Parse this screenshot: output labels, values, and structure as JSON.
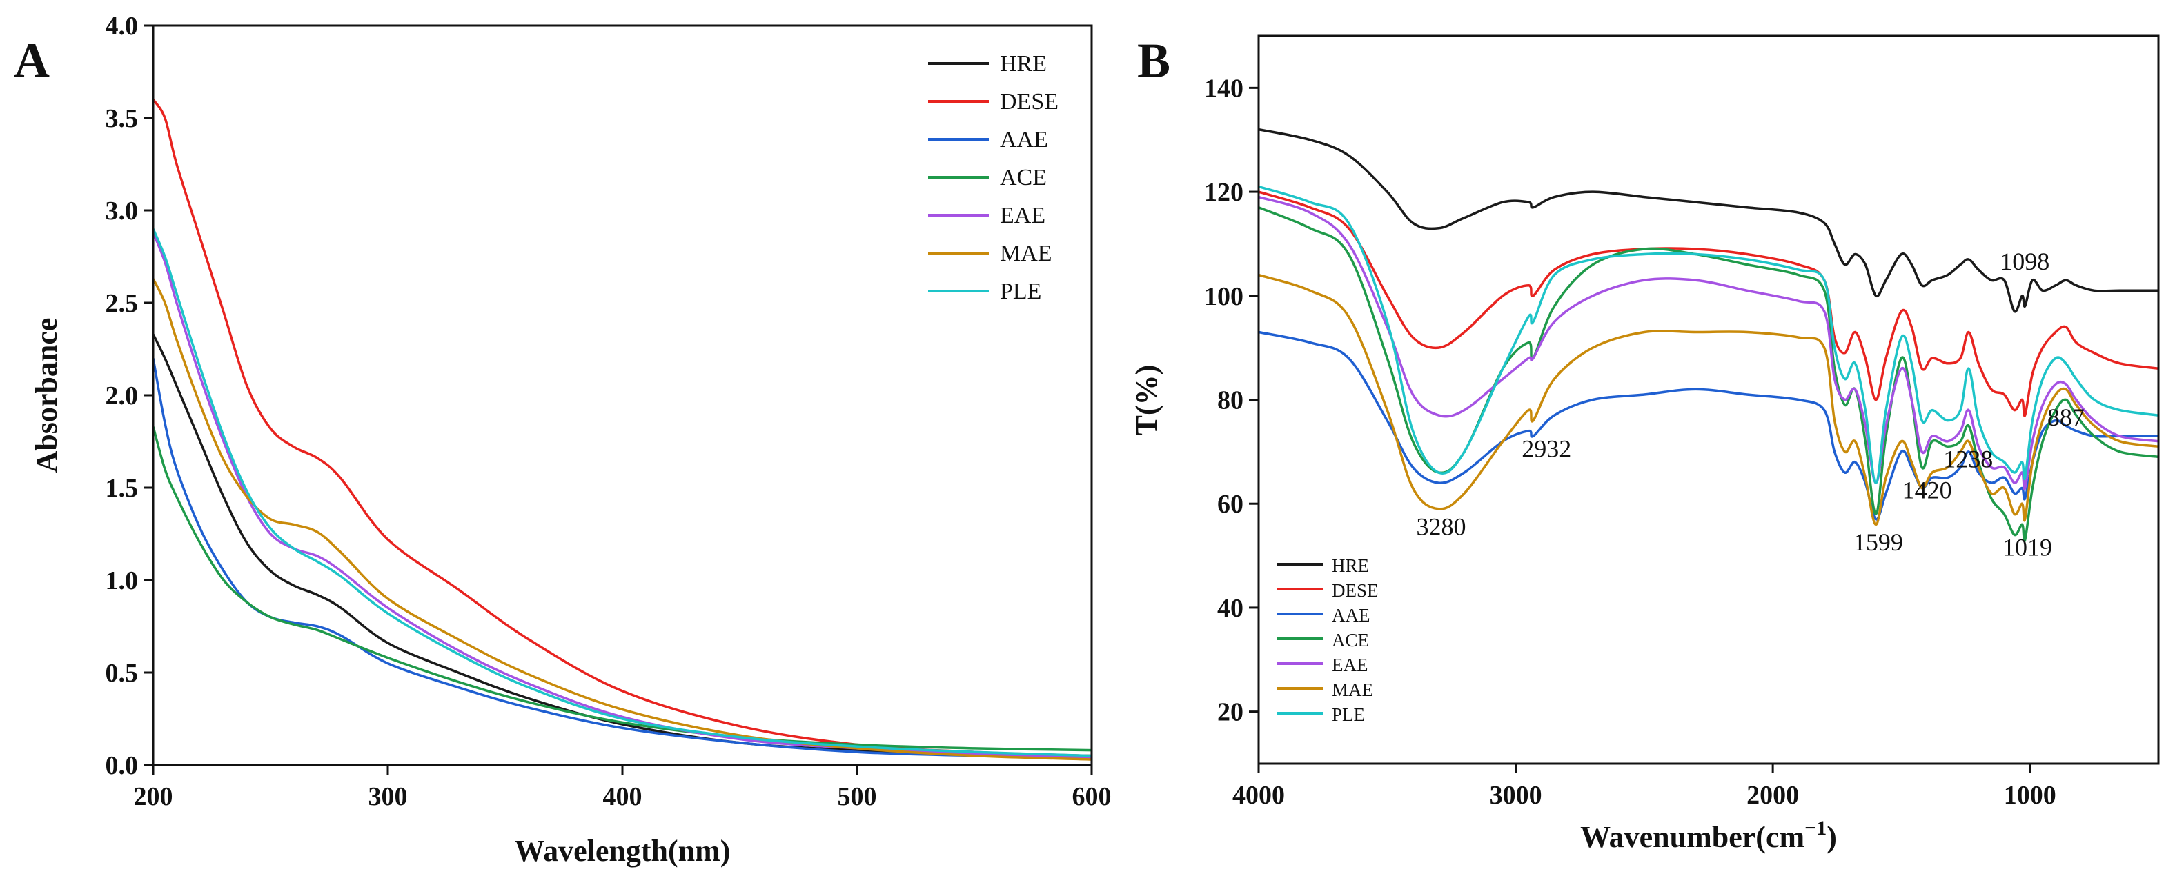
{
  "chart_data": [
    {
      "panel": "A",
      "type": "line",
      "title": "",
      "xlabel": "Wavelength(nm)",
      "ylabel": "Absorbance",
      "xlim": [
        200,
        600
      ],
      "ylim": [
        0.0,
        4.0
      ],
      "xticks": [
        200,
        300,
        400,
        500,
        600
      ],
      "yticks": [
        0.0,
        0.5,
        1.0,
        1.5,
        2.0,
        2.5,
        3.0,
        3.5,
        4.0
      ],
      "xtick_labels": [
        "200",
        "300",
        "400",
        "500",
        "600"
      ],
      "ytick_labels": [
        "0.0",
        "0.5",
        "1.0",
        "1.5",
        "2.0",
        "2.5",
        "3.0",
        "3.5",
        "4.0"
      ],
      "grid": false,
      "legend_position": "top-right",
      "x": [
        200,
        205,
        210,
        220,
        230,
        240,
        250,
        260,
        270,
        280,
        300,
        330,
        360,
        400,
        450,
        500,
        550,
        600
      ],
      "series": [
        {
          "name": "HRE",
          "color": "#1a1a1a",
          "values": [
            2.33,
            2.2,
            2.05,
            1.75,
            1.45,
            1.2,
            1.05,
            0.97,
            0.92,
            0.85,
            0.66,
            0.5,
            0.36,
            0.22,
            0.12,
            0.08,
            0.06,
            0.05
          ]
        },
        {
          "name": "DESE",
          "color": "#e8231f",
          "values": [
            3.6,
            3.5,
            3.25,
            2.85,
            2.45,
            2.05,
            1.82,
            1.72,
            1.66,
            1.55,
            1.22,
            0.95,
            0.68,
            0.4,
            0.21,
            0.11,
            0.07,
            0.05
          ]
        },
        {
          "name": "AAE",
          "color": "#1f5fd1",
          "values": [
            2.2,
            1.85,
            1.6,
            1.28,
            1.05,
            0.88,
            0.8,
            0.77,
            0.75,
            0.7,
            0.55,
            0.42,
            0.31,
            0.2,
            0.12,
            0.07,
            0.05,
            0.04
          ]
        },
        {
          "name": "ACE",
          "color": "#1f9a4a",
          "values": [
            1.83,
            1.6,
            1.45,
            1.2,
            1.0,
            0.88,
            0.8,
            0.76,
            0.73,
            0.68,
            0.58,
            0.45,
            0.34,
            0.23,
            0.15,
            0.11,
            0.09,
            0.08
          ]
        },
        {
          "name": "EAE",
          "color": "#a552e3",
          "values": [
            2.88,
            2.72,
            2.5,
            2.1,
            1.75,
            1.45,
            1.25,
            1.17,
            1.13,
            1.05,
            0.85,
            0.62,
            0.44,
            0.26,
            0.14,
            0.09,
            0.06,
            0.04
          ]
        },
        {
          "name": "MAE",
          "color": "#c98a0a",
          "values": [
            2.63,
            2.5,
            2.3,
            1.95,
            1.65,
            1.45,
            1.33,
            1.3,
            1.26,
            1.15,
            0.9,
            0.68,
            0.49,
            0.3,
            0.16,
            0.09,
            0.05,
            0.03
          ]
        },
        {
          "name": "PLE",
          "color": "#1dc4c8",
          "values": [
            2.9,
            2.75,
            2.55,
            2.15,
            1.78,
            1.48,
            1.28,
            1.17,
            1.1,
            1.02,
            0.82,
            0.6,
            0.42,
            0.25,
            0.15,
            0.1,
            0.07,
            0.05
          ]
        }
      ]
    },
    {
      "panel": "B",
      "type": "line",
      "title": "",
      "xlabel": "Wavenumber(cm",
      "xlabel_superscript": "−1",
      "xlabel_suffix": ")",
      "ylabel": "T(%)",
      "xlim": [
        4000,
        500
      ],
      "ylim": [
        10,
        150
      ],
      "xticks": [
        4000,
        3000,
        2000,
        1000
      ],
      "yticks": [
        20,
        40,
        60,
        80,
        100,
        120,
        140
      ],
      "xtick_labels": [
        "4000",
        "3000",
        "2000",
        "1000"
      ],
      "ytick_labels": [
        "20",
        "40",
        "60",
        "80",
        "100",
        "120",
        "140"
      ],
      "grid": false,
      "legend_position": "bottom-left",
      "annotations": [
        {
          "text": "3280",
          "x": 3290,
          "y": 54
        },
        {
          "text": "2932",
          "x": 2880,
          "y": 69
        },
        {
          "text": "1599",
          "x": 1590,
          "y": 51
        },
        {
          "text": "1420",
          "x": 1400,
          "y": 61
        },
        {
          "text": "1238",
          "x": 1240,
          "y": 67
        },
        {
          "text": "1019",
          "x": 1010,
          "y": 50
        },
        {
          "text": "887",
          "x": 860,
          "y": 75
        },
        {
          "text": "1098",
          "x": 1020,
          "y": 105
        }
      ],
      "x": [
        4000,
        3800,
        3650,
        3500,
        3400,
        3300,
        3200,
        3050,
        2950,
        2932,
        2850,
        2700,
        2500,
        2300,
        2100,
        1900,
        1800,
        1760,
        1720,
        1680,
        1640,
        1599,
        1560,
        1500,
        1460,
        1420,
        1380,
        1320,
        1270,
        1238,
        1200,
        1150,
        1100,
        1060,
        1030,
        1019,
        990,
        950,
        900,
        860,
        820,
        750,
        650,
        500
      ],
      "series": [
        {
          "name": "HRE",
          "color": "#1a1a1a",
          "values": [
            132,
            130,
            127,
            120,
            114,
            113,
            115,
            118,
            118,
            117,
            119,
            120,
            119,
            118,
            117,
            116,
            114,
            110,
            106,
            108,
            106,
            100,
            103,
            108,
            106,
            102,
            103,
            104,
            106,
            107,
            105,
            103,
            103,
            97,
            100,
            98,
            103,
            101,
            102,
            103,
            102,
            101,
            101,
            101
          ]
        },
        {
          "name": "DESE",
          "color": "#e8231f",
          "values": [
            120,
            117,
            113,
            100,
            92,
            90,
            93,
            100,
            102,
            100,
            105,
            108,
            109,
            109,
            108,
            106,
            103,
            92,
            89,
            93,
            88,
            80,
            88,
            97,
            94,
            86,
            88,
            87,
            88,
            93,
            87,
            82,
            81,
            78,
            80,
            77,
            85,
            90,
            93,
            94,
            91,
            89,
            87,
            86
          ]
        },
        {
          "name": "AAE",
          "color": "#1f5fd1",
          "values": [
            93,
            91,
            88,
            76,
            67,
            64,
            66,
            72,
            74,
            73,
            77,
            80,
            81,
            82,
            81,
            80,
            78,
            70,
            66,
            68,
            64,
            57,
            62,
            70,
            67,
            63,
            65,
            65,
            67,
            70,
            66,
            64,
            65,
            62,
            63,
            61,
            68,
            74,
            76,
            75,
            74,
            73,
            73,
            73
          ]
        },
        {
          "name": "ACE",
          "color": "#1f9a4a",
          "values": [
            117,
            113,
            108,
            88,
            72,
            66,
            70,
            86,
            91,
            88,
            98,
            106,
            109,
            108,
            106,
            104,
            101,
            86,
            79,
            82,
            72,
            58,
            73,
            88,
            80,
            67,
            72,
            71,
            72,
            75,
            68,
            61,
            58,
            54,
            56,
            53,
            63,
            72,
            78,
            80,
            77,
            73,
            70,
            69
          ]
        },
        {
          "name": "EAE",
          "color": "#a552e3",
          "values": [
            119,
            116,
            110,
            94,
            81,
            77,
            78,
            84,
            88,
            88,
            95,
            100,
            103,
            103,
            101,
            99,
            97,
            84,
            80,
            82,
            75,
            64,
            75,
            86,
            80,
            70,
            73,
            72,
            74,
            78,
            71,
            67,
            67,
            64,
            66,
            63,
            72,
            79,
            83,
            83,
            80,
            76,
            73,
            72
          ]
        },
        {
          "name": "MAE",
          "color": "#c98a0a",
          "values": [
            104,
            101,
            96,
            78,
            63,
            59,
            62,
            72,
            78,
            76,
            84,
            90,
            93,
            93,
            93,
            92,
            90,
            76,
            70,
            72,
            65,
            56,
            65,
            72,
            68,
            63,
            66,
            67,
            70,
            72,
            67,
            62,
            63,
            58,
            60,
            57,
            68,
            76,
            81,
            82,
            79,
            75,
            72,
            71
          ]
        },
        {
          "name": "PLE",
          "color": "#1dc4c8",
          "values": [
            121,
            118,
            114,
            95,
            74,
            66,
            70,
            86,
            96,
            95,
            104,
            107,
            108,
            108,
            107,
            105,
            103,
            90,
            84,
            87,
            78,
            64,
            78,
            92,
            87,
            76,
            78,
            76,
            78,
            86,
            76,
            70,
            68,
            66,
            68,
            65,
            76,
            84,
            88,
            87,
            84,
            80,
            78,
            77
          ]
        }
      ]
    }
  ],
  "labels": {
    "panel_a": "A",
    "panel_b": "B"
  }
}
